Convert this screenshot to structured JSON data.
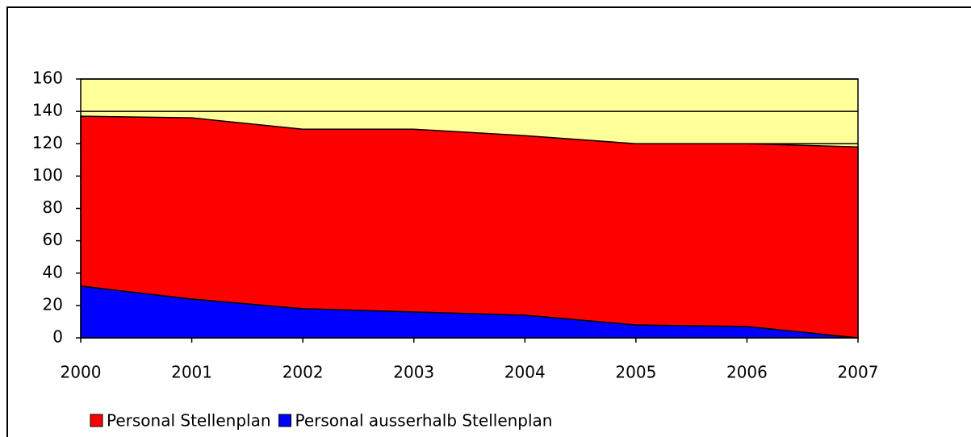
{
  "chart_data": {
    "type": "stacked_area",
    "x": [
      2000,
      2001,
      2002,
      2003,
      2004,
      2005,
      2006,
      2007
    ],
    "series": [
      {
        "name": "Personal ausserhalb Stellenplan",
        "color": "#0000ff",
        "values": [
          32,
          24,
          18,
          16,
          14,
          8,
          7,
          0
        ]
      },
      {
        "name": "Personal Stellenplan",
        "color": "#ff0000",
        "values": [
          105,
          112,
          111,
          113,
          111,
          112,
          113,
          118
        ]
      }
    ],
    "legend_order": [
      1,
      0
    ],
    "xlim": [
      2000,
      2007
    ],
    "xticks": [
      2000,
      2001,
      2002,
      2003,
      2004,
      2005,
      2006,
      2007
    ],
    "ylim": [
      0,
      160
    ],
    "yticks": [
      0,
      20,
      40,
      60,
      80,
      100,
      120,
      140,
      160
    ],
    "grid": true,
    "plot_background": "#ffff99",
    "legend": "bottom"
  }
}
